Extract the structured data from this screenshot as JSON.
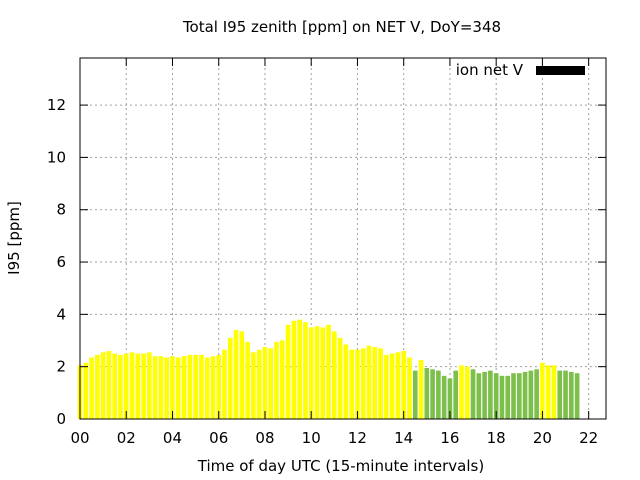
{
  "chart_data": {
    "type": "bar",
    "title": "Total I95 zenith [ppm] on NET V, DoY=348",
    "xlabel": "Time of day UTC (15-minute intervals)",
    "ylabel": "I95 [ppm]",
    "xlim": [
      0,
      22.75
    ],
    "ylim": [
      0,
      13.8
    ],
    "x_ticks": [
      "00",
      "02",
      "04",
      "06",
      "08",
      "10",
      "12",
      "14",
      "16",
      "18",
      "20",
      "22"
    ],
    "y_ticks": [
      "0",
      "2",
      "4",
      "6",
      "8",
      "10",
      "12"
    ],
    "grid": true,
    "legend": {
      "entries": [
        "ion net V"
      ],
      "placement": "top-right",
      "color": "#000000"
    },
    "colors": {
      "yellow": "#ffff00",
      "green": "#7dbf4b"
    },
    "interval_hours": 0.25,
    "values": [
      2.05,
      2.15,
      2.35,
      2.45,
      2.55,
      2.6,
      2.5,
      2.45,
      2.5,
      2.55,
      2.5,
      2.5,
      2.55,
      2.4,
      2.4,
      2.35,
      2.4,
      2.35,
      2.4,
      2.45,
      2.45,
      2.45,
      2.35,
      2.4,
      2.45,
      2.65,
      3.1,
      3.4,
      3.35,
      2.95,
      2.55,
      2.65,
      2.75,
      2.7,
      2.95,
      3.0,
      3.6,
      3.75,
      3.8,
      3.7,
      3.5,
      3.55,
      3.5,
      3.6,
      3.35,
      3.1,
      2.85,
      2.65,
      2.65,
      2.7,
      2.8,
      2.75,
      2.7,
      2.45,
      2.5,
      2.55,
      2.6,
      2.35,
      1.85,
      2.25,
      1.95,
      1.9,
      1.85,
      1.65,
      1.55,
      1.85,
      2.05,
      2.0,
      1.9,
      1.75,
      1.8,
      1.85,
      1.75,
      1.65,
      1.65,
      1.75,
      1.75,
      1.8,
      1.85,
      1.9,
      2.15,
      2.05,
      2.05,
      1.85,
      1.85,
      1.8,
      1.75
    ],
    "bar_colors": [
      "yellow",
      "yellow",
      "yellow",
      "yellow",
      "yellow",
      "yellow",
      "yellow",
      "yellow",
      "yellow",
      "yellow",
      "yellow",
      "yellow",
      "yellow",
      "yellow",
      "yellow",
      "yellow",
      "yellow",
      "yellow",
      "yellow",
      "yellow",
      "yellow",
      "yellow",
      "yellow",
      "yellow",
      "yellow",
      "yellow",
      "yellow",
      "yellow",
      "yellow",
      "yellow",
      "yellow",
      "yellow",
      "yellow",
      "yellow",
      "yellow",
      "yellow",
      "yellow",
      "yellow",
      "yellow",
      "yellow",
      "yellow",
      "yellow",
      "yellow",
      "yellow",
      "yellow",
      "yellow",
      "yellow",
      "yellow",
      "yellow",
      "yellow",
      "yellow",
      "yellow",
      "yellow",
      "yellow",
      "yellow",
      "yellow",
      "yellow",
      "yellow",
      "green",
      "yellow",
      "green",
      "green",
      "green",
      "green",
      "green",
      "green",
      "yellow",
      "yellow",
      "green",
      "green",
      "green",
      "green",
      "green",
      "green",
      "green",
      "green",
      "green",
      "green",
      "green",
      "green",
      "yellow",
      "yellow",
      "yellow",
      "green",
      "green",
      "green",
      "green"
    ]
  }
}
